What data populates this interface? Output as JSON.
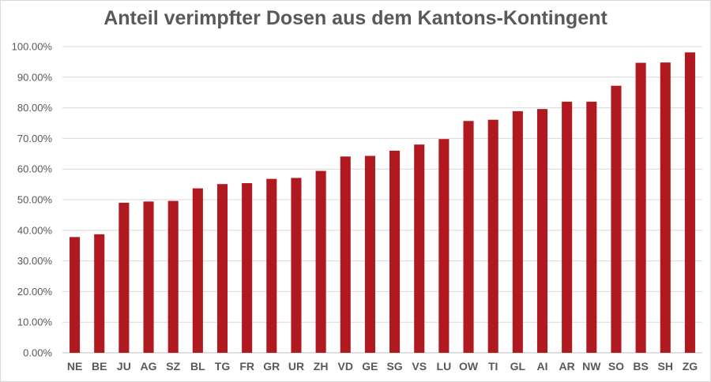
{
  "chart_data": {
    "type": "bar",
    "title": "Anteil verimpfter Dosen aus dem Kantons-Kontingent",
    "xlabel": "",
    "ylabel": "",
    "ylim": [
      0,
      1
    ],
    "yticks": [
      0,
      0.1,
      0.2,
      0.3,
      0.4,
      0.5,
      0.6,
      0.7,
      0.8,
      0.9,
      1.0
    ],
    "ytick_labels": [
      "0.00%",
      "10.00%",
      "20.00%",
      "30.00%",
      "40.00%",
      "50.00%",
      "60.00%",
      "70.00%",
      "80.00%",
      "90.00%",
      "100.00%"
    ],
    "grid": true,
    "legend": "none",
    "bar_color": "#b0191f",
    "categories": [
      "NE",
      "BE",
      "JU",
      "AG",
      "SZ",
      "BL",
      "TG",
      "FR",
      "GR",
      "UR",
      "ZH",
      "VD",
      "GE",
      "SG",
      "VS",
      "LU",
      "OW",
      "TI",
      "GL",
      "AI",
      "AR",
      "NW",
      "SO",
      "BS",
      "SH",
      "ZG"
    ],
    "values": [
      0.378,
      0.387,
      0.49,
      0.494,
      0.496,
      0.537,
      0.551,
      0.554,
      0.568,
      0.571,
      0.594,
      0.641,
      0.643,
      0.66,
      0.68,
      0.698,
      0.757,
      0.761,
      0.789,
      0.796,
      0.82,
      0.82,
      0.872,
      0.947,
      0.948,
      0.981
    ]
  }
}
